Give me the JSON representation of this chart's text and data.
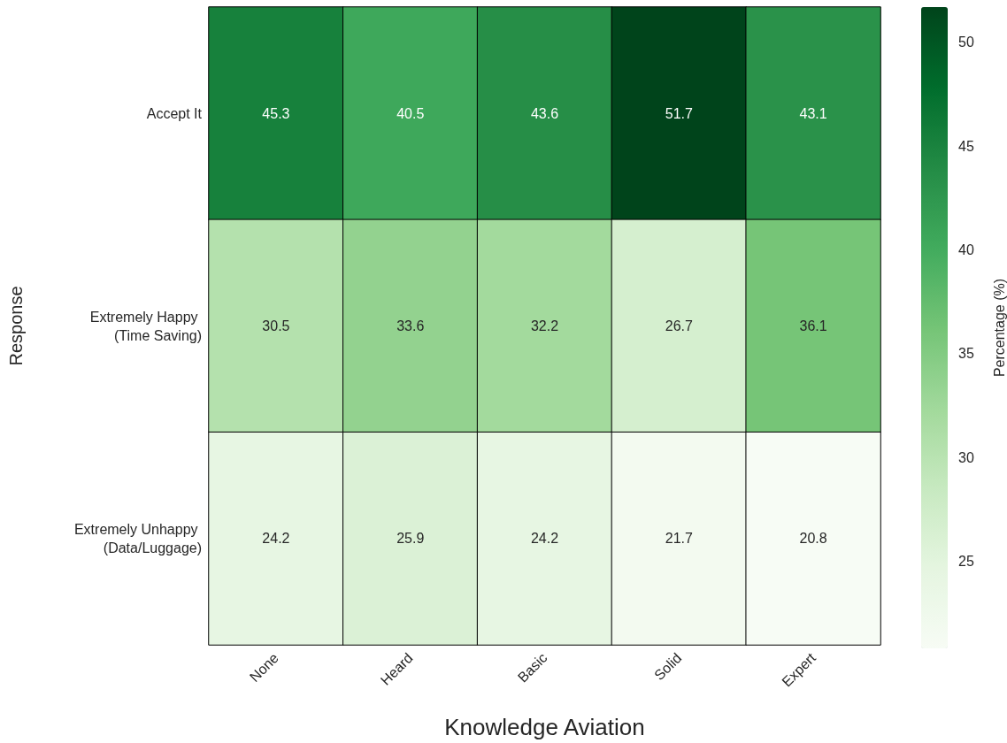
{
  "chart_data": {
    "type": "heatmap",
    "xlabel": "Knowledge Aviation",
    "ylabel": "Response",
    "clabel": "Percentage (%)",
    "categories": [
      "None",
      "Heard",
      "Basic",
      "Solid",
      "Expert"
    ],
    "y_categories": [
      "Accept It",
      "Extremely Happy (Time Saving)",
      "Extremely Unhappy (Data/Luggage)"
    ],
    "cells": [
      [
        45.3,
        40.5,
        43.6,
        51.7,
        43.1
      ],
      [
        30.5,
        33.6,
        32.2,
        26.7,
        36.1
      ],
      [
        24.2,
        25.9,
        24.2,
        21.7,
        20.8
      ]
    ],
    "data_labels": true,
    "clim": [
      20.8,
      51.7
    ],
    "cticks": [
      25,
      30,
      35,
      40,
      45,
      50
    ]
  }
}
